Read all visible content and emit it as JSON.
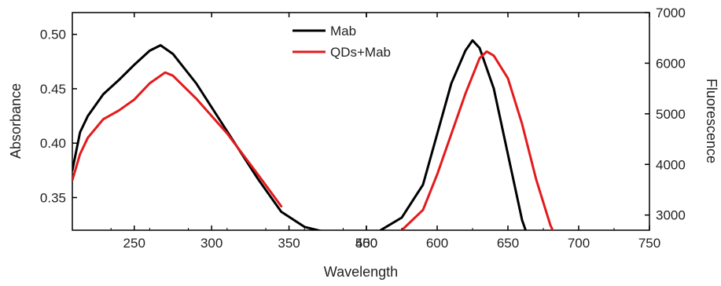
{
  "chart_data": {
    "type": "line",
    "xlabel": "Wavelength",
    "ylabel_left": "Absorbance",
    "ylabel_right": "Fluorescence",
    "legend_position": "top-center",
    "grid": false,
    "colors": {
      "Mab": "#000000",
      "QDs+Mab": "#e31a1c"
    },
    "panels": [
      {
        "measure": "absorbance",
        "xlim": [
          210,
          400
        ],
        "ylim": [
          0.32,
          0.52
        ],
        "xticks": [
          "250",
          "300",
          "350",
          "400"
        ],
        "yticks": [
          "0.35",
          "0.40",
          "0.45",
          "0.50"
        ],
        "series": [
          {
            "name": "Mab",
            "x": [
              210,
              215,
              220,
              230,
              240,
              250,
              260,
              267,
              275,
              290,
              310,
              330,
              345,
              360,
              380
            ],
            "y": [
              0.375,
              0.41,
              0.425,
              0.445,
              0.458,
              0.472,
              0.485,
              0.49,
              0.482,
              0.455,
              0.411,
              0.367,
              0.337,
              0.323,
              0.316
            ]
          },
          {
            "name": "QDs+Mab",
            "x": [
              210,
              215,
              220,
              230,
              240,
              250,
              260,
              270,
              275,
              290,
              310,
              330,
              345
            ],
            "y": [
              0.366,
              0.39,
              0.405,
              0.422,
              0.43,
              0.44,
              0.455,
              0.465,
              0.462,
              0.441,
              0.409,
              0.371,
              0.342
            ]
          }
        ]
      },
      {
        "measure": "fluorescence",
        "xlim": [
          550,
          750
        ],
        "ylim": [
          2700,
          7000
        ],
        "xticks": [
          "550",
          "600",
          "650",
          "700",
          "750"
        ],
        "yticks": [
          "3000",
          "4000",
          "5000",
          "6000",
          "7000"
        ],
        "series": [
          {
            "name": "Mab",
            "x": [
              560,
              575,
              590,
              600,
              610,
              620,
              625,
              630,
              640,
              650,
              660,
              665
            ],
            "y": [
              2700,
              2950,
              3600,
              4600,
              5600,
              6250,
              6450,
              6300,
              5500,
              4200,
              2900,
              2500
            ]
          },
          {
            "name": "QDs+Mab",
            "x": [
              575,
              590,
              600,
              610,
              620,
              630,
              635,
              640,
              650,
              660,
              670,
              680,
              685
            ],
            "y": [
              2700,
              3100,
              3800,
              4600,
              5400,
              6100,
              6230,
              6150,
              5700,
              4800,
              3700,
              2800,
              2500
            ]
          }
        ]
      }
    ]
  }
}
